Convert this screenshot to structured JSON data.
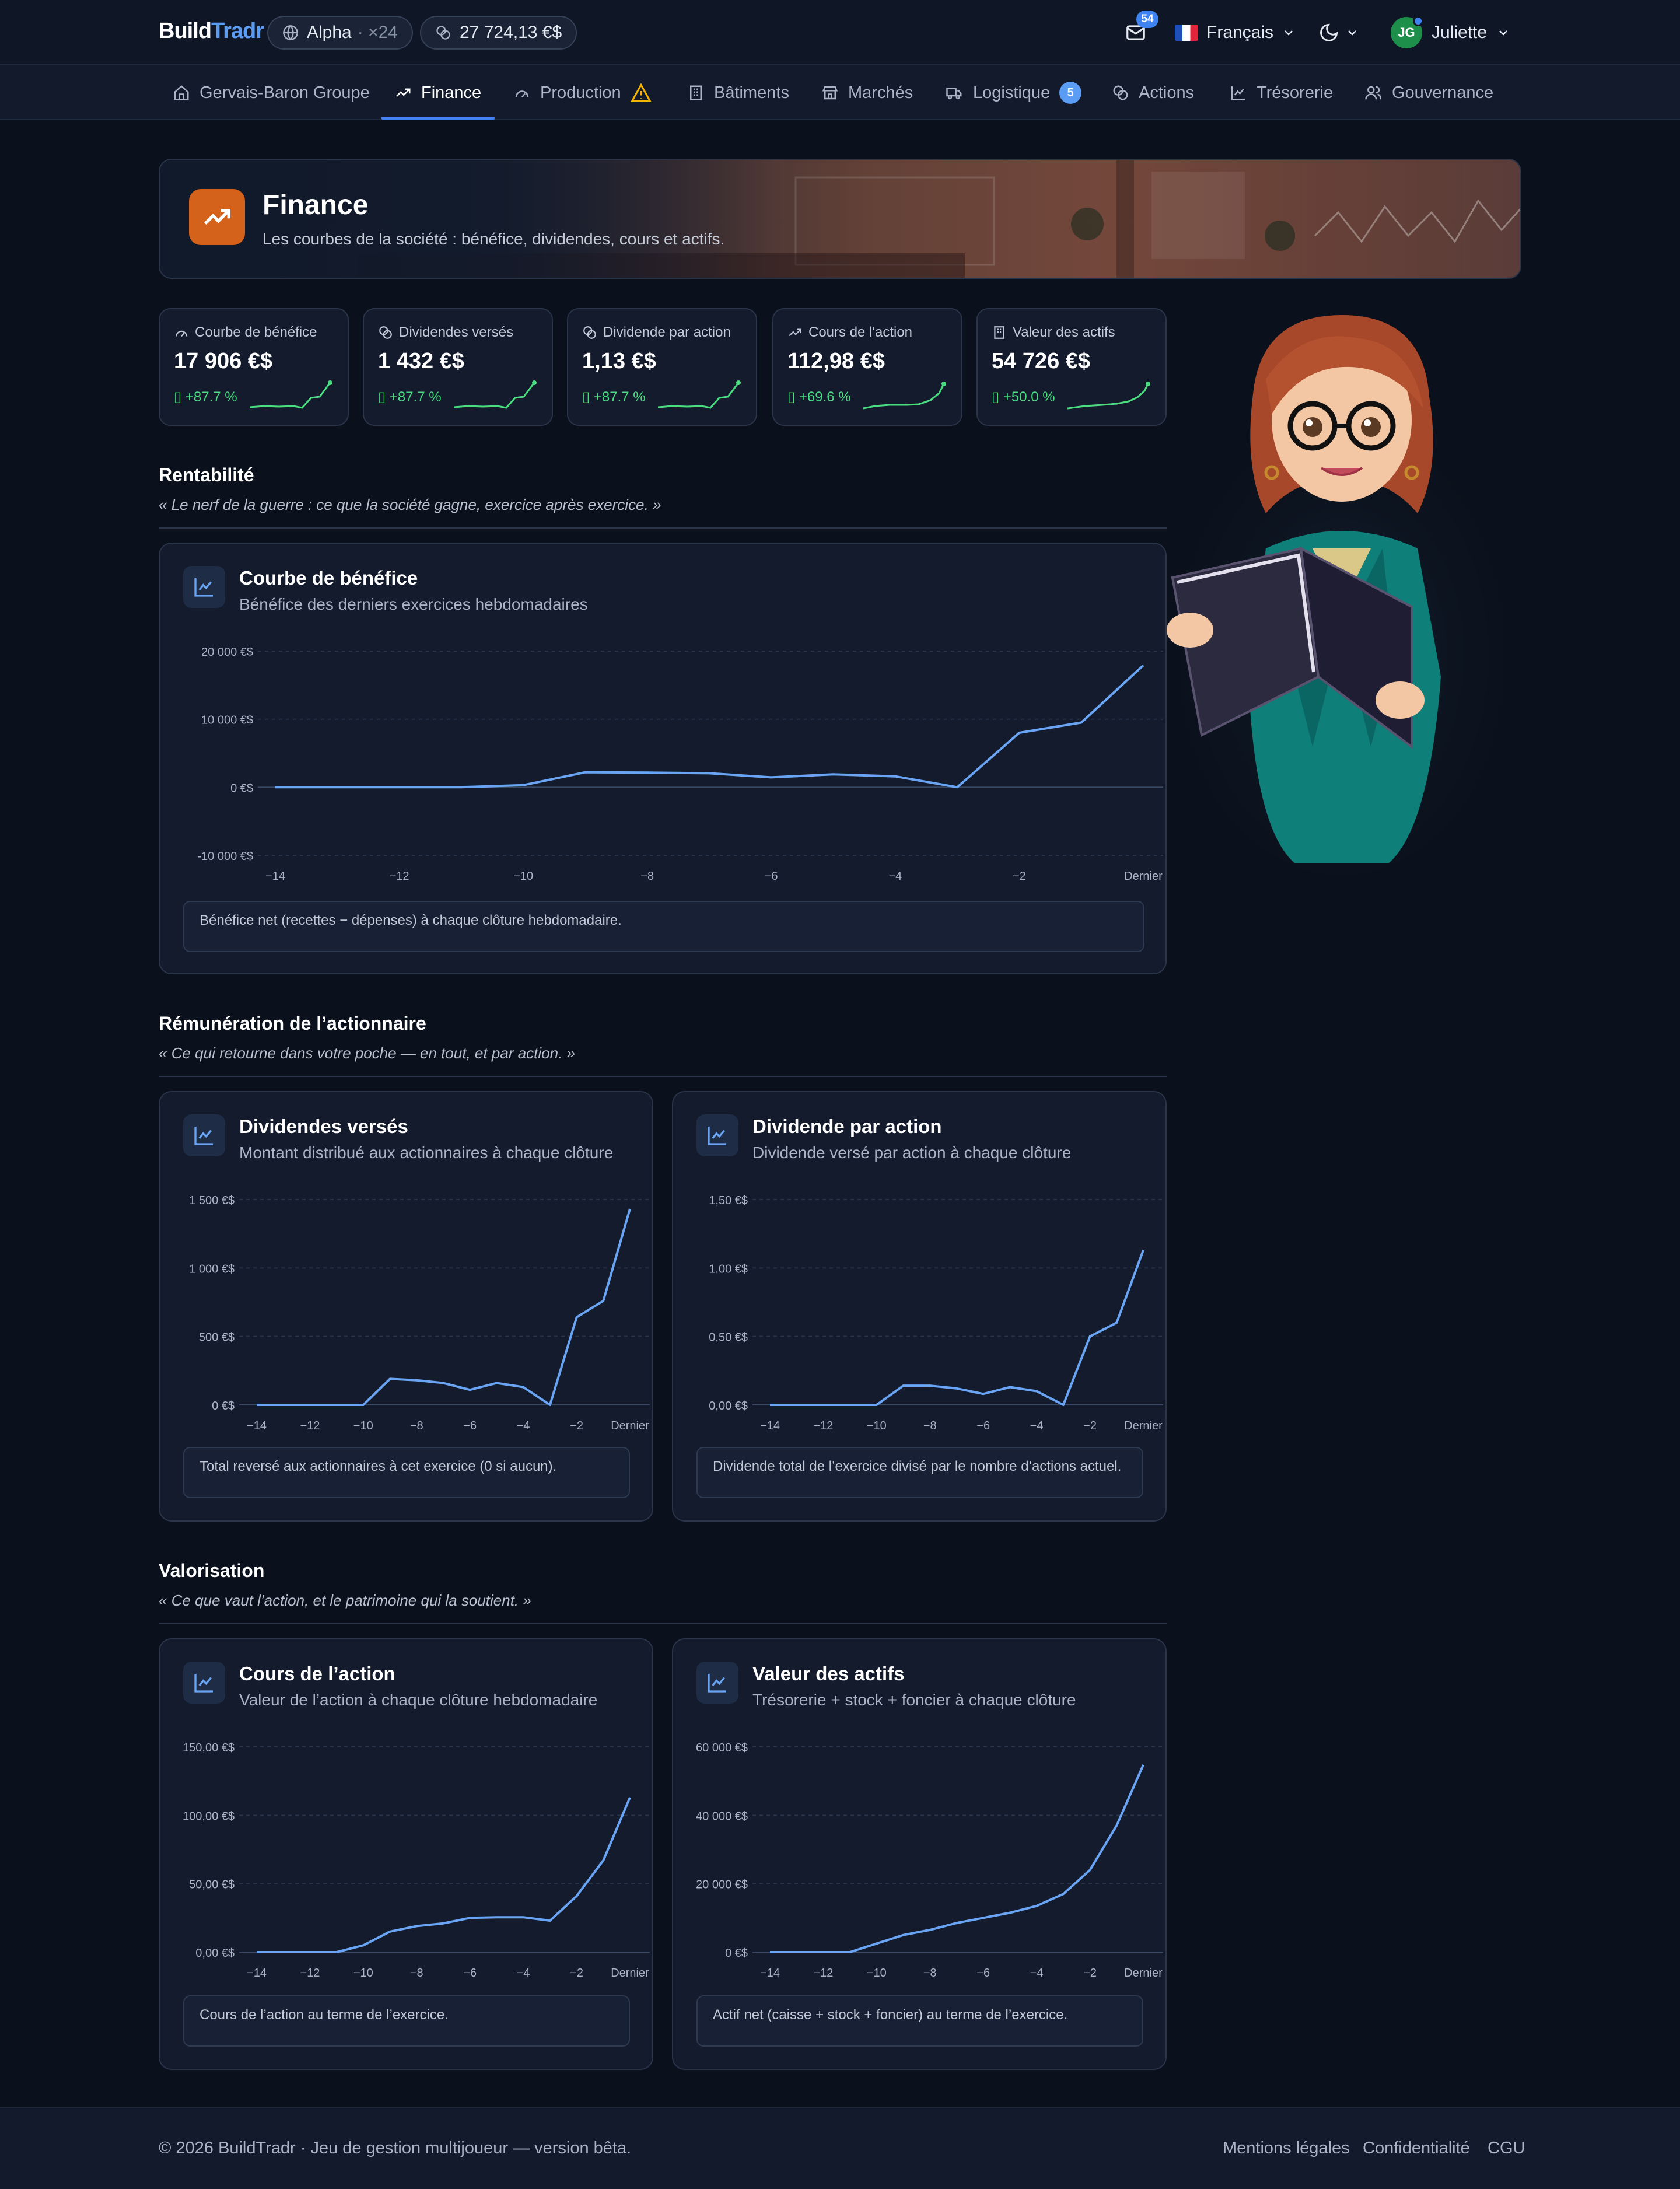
{
  "header": {
    "logo_part1": "Build",
    "logo_part2": "Tradr",
    "server": "Alpha",
    "server_speed": "· ×24",
    "balance": "27 724,13 €$",
    "mail_count": "54",
    "language": "Français",
    "user_initials": "JG",
    "user_name": "Juliette"
  },
  "nav": {
    "items": [
      {
        "label": "Gervais-Baron Groupe",
        "icon": "home-icon"
      },
      {
        "label": "Finance",
        "icon": "trending-up-icon",
        "active": true
      },
      {
        "label": "Production",
        "icon": "gauge-icon",
        "alert": "warning-icon"
      },
      {
        "label": "Bâtiments",
        "icon": "building-icon"
      },
      {
        "label": "Marchés",
        "icon": "store-icon"
      },
      {
        "label": "Logistique",
        "icon": "truck-icon",
        "badge": "5"
      },
      {
        "label": "Actions",
        "icon": "coins-icon"
      },
      {
        "label": "Trésorerie",
        "icon": "line-chart-icon"
      },
      {
        "label": "Gouvernance",
        "icon": "users-icon"
      }
    ]
  },
  "hero": {
    "title": "Finance",
    "subtitle": "Les courbes de la société : bénéfice, dividendes, cours et actifs."
  },
  "kpis": [
    {
      "label": "Courbe de bénéfice",
      "value": "17 906 €$",
      "delta": "▯ +87.7 %",
      "icon": "gauge-icon"
    },
    {
      "label": "Dividendes versés",
      "value": "1 432 €$",
      "delta": "▯ +87.7 %",
      "icon": "coins-icon"
    },
    {
      "label": "Dividende par action",
      "value": "1,13 €$",
      "delta": "▯ +87.7 %",
      "icon": "coins-icon"
    },
    {
      "label": "Cours de l'action",
      "value": "112,98 €$",
      "delta": "▯ +69.6 %",
      "icon": "trending-up-icon"
    },
    {
      "label": "Valeur des actifs",
      "value": "54 726 €$",
      "delta": "▯ +50.0 %",
      "icon": "building-icon"
    }
  ],
  "sections": {
    "rentabilite": {
      "title": "Rentabilité",
      "quote": "« Le nerf de la guerre : ce que la société gagne, exercice après exercice. »"
    },
    "remuneration": {
      "title": "Rémunération de l’actionnaire",
      "quote": "« Ce qui retourne dans votre poche — en tout, et par action. »"
    },
    "valorisation": {
      "title": "Valorisation",
      "quote": "« Ce que vaut l’action, et le patrimoine qui la soutient. »"
    }
  },
  "cards": {
    "benefice": {
      "title": "Courbe de bénéfice",
      "subtitle": "Bénéfice des derniers exercices hebdomadaires",
      "note": "Bénéfice net (recettes − dépenses) à chaque clôture hebdomadaire."
    },
    "dividendes": {
      "title": "Dividendes versés",
      "subtitle": "Montant distribué aux actionnaires à chaque clôture",
      "note": "Total reversé aux actionnaires à cet exercice (0 si aucun)."
    },
    "dpa": {
      "title": "Dividende par action",
      "subtitle": "Dividende versé par action à chaque clôture",
      "note": "Dividende total de l’exercice divisé par le nombre d’actions actuel."
    },
    "cours": {
      "title": "Cours de l’action",
      "subtitle": "Valeur de l’action à chaque clôture hebdomadaire",
      "note": "Cours de l’action au terme de l’exercice."
    },
    "actifs": {
      "title": "Valeur des actifs",
      "subtitle": "Trésorerie + stock + foncier à chaque clôture",
      "note": "Actif net (caisse + stock + foncier) au terme de l’exercice."
    }
  },
  "colors": {
    "line": "#6aa5f5",
    "accent": "#3f83f0",
    "positive": "#4ade80",
    "hero_icon": "#d4621a"
  },
  "chart_data": [
    {
      "id": "benefice",
      "type": "line",
      "x": [
        "−14",
        "−13",
        "−12",
        "−11",
        "−10",
        "−9",
        "−8",
        "−7",
        "−6",
        "−5",
        "−4",
        "−3",
        "−2",
        "−1",
        "Dernier"
      ],
      "xticks": [
        "−14",
        "−12",
        "−10",
        "−8",
        "−6",
        "−4",
        "−2",
        "Dernier"
      ],
      "series": [
        {
          "values": [
            0,
            0,
            0,
            0,
            300,
            2200,
            2150,
            2050,
            1450,
            1900,
            1600,
            0,
            8000,
            9500,
            17906
          ]
        }
      ],
      "ylim": [
        -10000,
        20000
      ],
      "yticks": [
        -10000,
        0,
        10000,
        20000
      ],
      "ytick_labels": [
        "-10 000 €$",
        "0 €$",
        "10 000 €$",
        "20 000 €$"
      ],
      "grid": true
    },
    {
      "id": "dividendes",
      "type": "line",
      "x": [
        "−14",
        "−13",
        "−12",
        "−11",
        "−10",
        "−9",
        "−8",
        "−7",
        "−6",
        "−5",
        "−4",
        "−3",
        "−2",
        "−1",
        "Dernier"
      ],
      "xticks": [
        "−14",
        "−12",
        "−10",
        "−8",
        "−6",
        "−4",
        "−2",
        "Dernier"
      ],
      "series": [
        {
          "values": [
            0,
            0,
            0,
            0,
            0,
            190,
            180,
            160,
            110,
            160,
            130,
            0,
            640,
            760,
            1432
          ]
        }
      ],
      "ylim": [
        0,
        1500
      ],
      "yticks": [
        0,
        500,
        1000,
        1500
      ],
      "ytick_labels": [
        "0 €$",
        "500 €$",
        "1 000 €$",
        "1 500 €$"
      ],
      "grid": true
    },
    {
      "id": "dpa",
      "type": "line",
      "x": [
        "−14",
        "−13",
        "−12",
        "−11",
        "−10",
        "−9",
        "−8",
        "−7",
        "−6",
        "−5",
        "−4",
        "−3",
        "−2",
        "−1",
        "Dernier"
      ],
      "xticks": [
        "−14",
        "−12",
        "−10",
        "−8",
        "−6",
        "−4",
        "−2",
        "Dernier"
      ],
      "series": [
        {
          "values": [
            0,
            0,
            0,
            0,
            0,
            0.14,
            0.14,
            0.12,
            0.08,
            0.13,
            0.1,
            0,
            0.5,
            0.6,
            1.13
          ]
        }
      ],
      "ylim": [
        0,
        1.5
      ],
      "yticks": [
        0,
        0.5,
        1,
        1.5
      ],
      "ytick_labels": [
        "0,00 €$",
        "0,50 €$",
        "1,00 €$",
        "1,50 €$"
      ],
      "grid": true
    },
    {
      "id": "cours",
      "type": "line",
      "x": [
        "−14",
        "−13",
        "−12",
        "−11",
        "−10",
        "−9",
        "−8",
        "−7",
        "−6",
        "−5",
        "−4",
        "−3",
        "−2",
        "−1",
        "Dernier"
      ],
      "xticks": [
        "−14",
        "−12",
        "−10",
        "−8",
        "−6",
        "−4",
        "−2",
        "Dernier"
      ],
      "series": [
        {
          "values": [
            0,
            0,
            0,
            0,
            5,
            15,
            19,
            21,
            25,
            25.5,
            25.5,
            23,
            41,
            67,
            112.98
          ]
        }
      ],
      "ylim": [
        0,
        150
      ],
      "yticks": [
        0,
        50,
        100,
        150
      ],
      "ytick_labels": [
        "0,00 €$",
        "50,00 €$",
        "100,00 €$",
        "150,00 €$"
      ],
      "grid": true
    },
    {
      "id": "actifs",
      "type": "line",
      "x": [
        "−14",
        "−13",
        "−12",
        "−11",
        "−10",
        "−9",
        "−8",
        "−7",
        "−6",
        "−5",
        "−4",
        "−3",
        "−2",
        "−1",
        "Dernier"
      ],
      "xticks": [
        "−14",
        "−12",
        "−10",
        "−8",
        "−6",
        "−4",
        "−2",
        "Dernier"
      ],
      "series": [
        {
          "values": [
            0,
            0,
            0,
            0,
            2500,
            5000,
            6500,
            8500,
            10000,
            11500,
            13500,
            17000,
            24000,
            37000,
            54726
          ]
        }
      ],
      "ylim": [
        0,
        60000
      ],
      "yticks": [
        0,
        20000,
        40000,
        60000
      ],
      "ytick_labels": [
        "0 €$",
        "20 000 €$",
        "40 000 €$",
        "60 000 €$"
      ],
      "grid": true
    }
  ],
  "footer": {
    "copyright": "© 2026 BuildTradr · Jeu de gestion multijoueur — version bêta.",
    "links": [
      "Mentions légales",
      "Confidentialité",
      "CGU"
    ]
  }
}
